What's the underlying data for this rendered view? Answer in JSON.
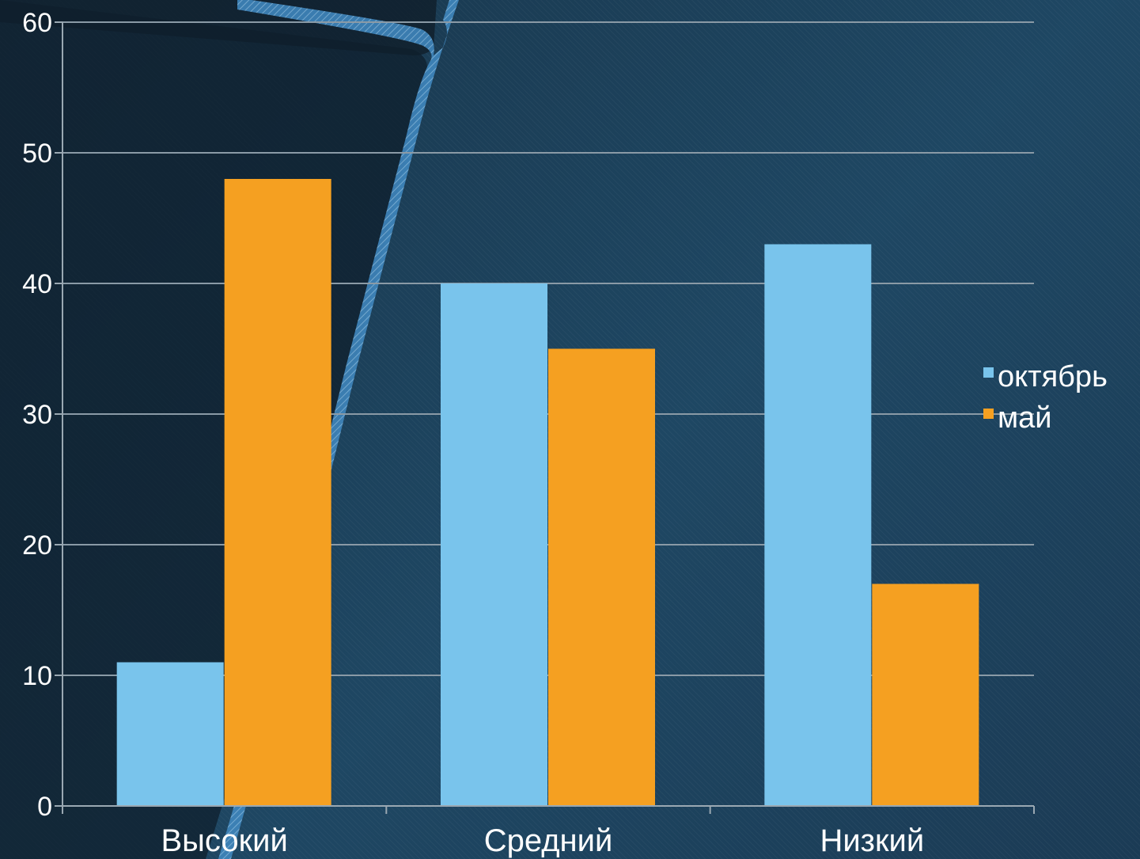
{
  "chart_data": {
    "type": "bar",
    "categories": [
      "Высокий",
      "Средний",
      "Низкий"
    ],
    "series": [
      {
        "name": "октябрь",
        "color": "#79c4ec",
        "values": [
          11,
          40,
          43
        ]
      },
      {
        "name": "май",
        "color": "#f5a021",
        "values": [
          48,
          35,
          17
        ]
      }
    ],
    "ylim": [
      0,
      60
    ],
    "yticks": [
      0,
      10,
      20,
      30,
      40,
      50,
      60
    ],
    "grid": true,
    "legend": "right"
  }
}
